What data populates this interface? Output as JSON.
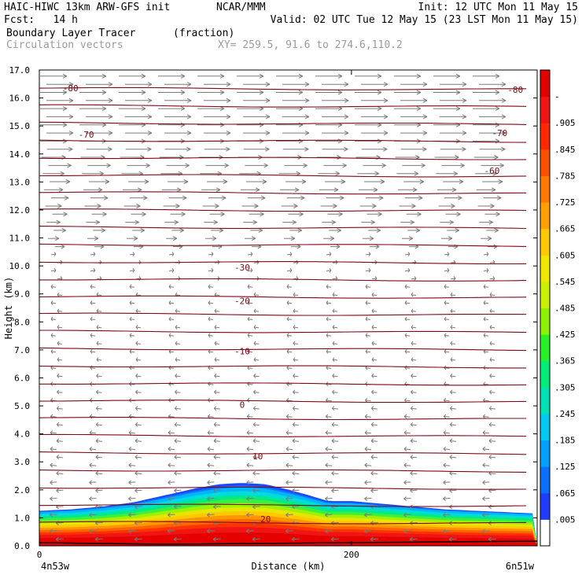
{
  "header": {
    "line1_left": "HAIC-HIWC 13km ARW-GFS init",
    "line1_mid": "NCAR/MMM",
    "line1_right": "Init: 12 UTC Mon 11 May 15",
    "line2_left": "Fcst:   14 h",
    "line2_right": "Valid: 02 UTC Tue 12 May 15 (23 LST Mon 11 May 15)",
    "field_name": "Boundary Layer Tracer",
    "field_units": "(fraction)",
    "overlay_name": "Circulation vectors",
    "xy_range": "XY= 259.5, 91.6 to 274.6,110.2"
  },
  "chart_data": {
    "type": "heatmap",
    "title": "Boundary Layer Tracer",
    "xlabel": "Distance (km)",
    "ylabel": "Height (km)",
    "xlim": [
      0,
      319
    ],
    "ylim": [
      0,
      17
    ],
    "x_ticks": [
      {
        "value": 0,
        "label": "0"
      },
      {
        "value": 200,
        "label": "200"
      }
    ],
    "x_end_labels": {
      "left": "4n53w",
      "right": "6n51w"
    },
    "y_ticks": [
      "0.0",
      "1.0",
      "2.0",
      "3.0",
      "4.0",
      "5.0",
      "6.0",
      "7.0",
      "8.0",
      "9.0",
      "10.0",
      "11.0",
      "12.0",
      "13.0",
      "14.0",
      "15.0",
      "16.0",
      "17.0"
    ],
    "colorbar": {
      "labels": [
        ".005",
        ".065",
        ".125",
        ".185",
        ".245",
        ".305",
        ".365",
        ".425",
        ".485",
        ".545",
        ".605",
        ".665",
        ".725",
        ".785",
        ".845",
        ".905",
        "-"
      ],
      "colors": [
        "#ffffff",
        "#1e3cff",
        "#0a6eff",
        "#00a0ff",
        "#00c8f0",
        "#00e0b4",
        "#00ec78",
        "#28f028",
        "#8cf000",
        "#c8f000",
        "#f0e600",
        "#ffc800",
        "#ffa000",
        "#ff7800",
        "#ff5000",
        "#ff2800",
        "#f01414",
        "#e10000"
      ]
    },
    "tracer_top_km": [
      [
        0,
        1.25
      ],
      [
        20,
        1.3
      ],
      [
        40,
        1.4
      ],
      [
        60,
        1.55
      ],
      [
        80,
        1.8
      ],
      [
        100,
        2.05
      ],
      [
        115,
        2.2
      ],
      [
        130,
        2.25
      ],
      [
        145,
        2.2
      ],
      [
        160,
        2.0
      ],
      [
        170,
        1.85
      ],
      [
        185,
        1.6
      ],
      [
        200,
        1.6
      ],
      [
        220,
        1.5
      ],
      [
        240,
        1.4
      ],
      [
        260,
        1.3
      ],
      [
        280,
        1.25
      ],
      [
        300,
        1.2
      ],
      [
        319,
        1.15
      ]
    ],
    "isotherms": [
      {
        "label": "-80",
        "y_km": 16.35
      },
      {
        "label": "-70",
        "y_km": 14.75
      },
      {
        "label": "-60",
        "y_km": 13.4
      },
      {
        "label": "-30",
        "y_km": 9.9
      },
      {
        "label": "-20",
        "y_km": 8.6
      },
      {
        "label": "-10",
        "y_km": 6.85
      },
      {
        "label": "0",
        "y_km": 5.0
      },
      {
        "label": "10",
        "y_km": 3.1
      },
      {
        "label": "20",
        "y_km": 0.95
      }
    ],
    "isotherm_labels": [
      {
        "label": "-80",
        "x_km": 20,
        "y_km": 16.35
      },
      {
        "label": "-80",
        "x_km": 305,
        "y_km": 16.3
      },
      {
        "label": "-70",
        "x_km": 30,
        "y_km": 14.7
      },
      {
        "label": "-70",
        "x_km": 295,
        "y_km": 14.75
      },
      {
        "label": "-60",
        "x_km": 290,
        "y_km": 13.4
      },
      {
        "label": "-30",
        "x_km": 130,
        "y_km": 9.95
      },
      {
        "label": "-20",
        "x_km": 130,
        "y_km": 8.75
      },
      {
        "label": "-10",
        "x_km": 130,
        "y_km": 6.95
      },
      {
        "label": "0",
        "x_km": 130,
        "y_km": 5.05
      },
      {
        "label": "10",
        "x_km": 140,
        "y_km": 3.2
      },
      {
        "label": "20",
        "x_km": 145,
        "y_km": 0.95
      }
    ]
  }
}
